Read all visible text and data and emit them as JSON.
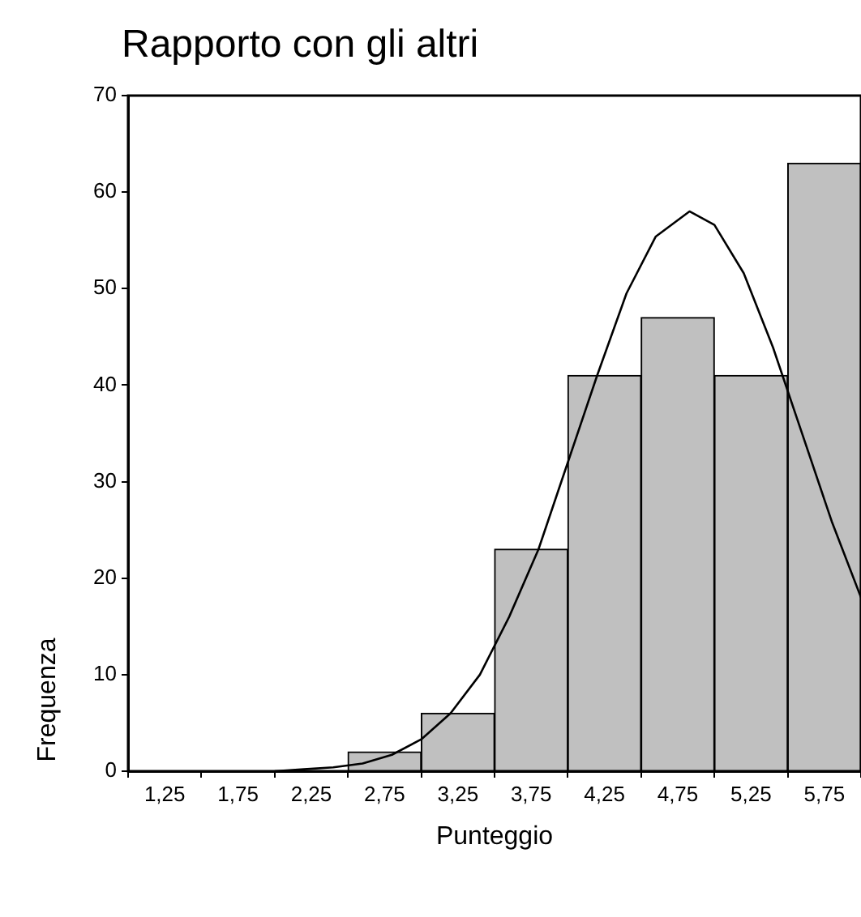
{
  "chart_data": {
    "type": "histogram",
    "title": "Rapporto con gli altri",
    "xlabel": "Punteggio",
    "ylabel": "Frequenza",
    "bins": [
      1.0,
      1.5,
      2.0,
      2.5,
      3.0,
      3.5,
      4.0,
      4.5,
      5.0,
      5.5,
      6.0
    ],
    "values": [
      0,
      0,
      0,
      2,
      6,
      23,
      41,
      47,
      41,
      63
    ],
    "color": "#c0c0c0",
    "series": [
      {
        "type": "line",
        "color": "#000000",
        "x": [
          2.0,
          2.2,
          2.4,
          2.6,
          2.8,
          3.0,
          3.2,
          3.4,
          3.6,
          3.8,
          4.0,
          4.2,
          4.4,
          4.6,
          4.83,
          5.0,
          5.2,
          5.4,
          5.6,
          5.8,
          6.0
        ],
        "values": [
          0,
          0.2,
          0.4,
          0.8,
          1.7,
          3.3,
          6,
          10,
          16,
          23,
          32,
          41,
          49.5,
          55.4,
          58,
          56.6,
          51.6,
          43.9,
          34.9,
          25.9,
          18
        ]
      }
    ],
    "xlim": [
      1.0,
      6.0
    ],
    "xticks": [
      {
        "value": 1.25,
        "label": "1,25"
      },
      {
        "value": 1.75,
        "label": "1,75"
      },
      {
        "value": 2.25,
        "label": "2,25"
      },
      {
        "value": 2.75,
        "label": "2,75"
      },
      {
        "value": 3.25,
        "label": "3,25"
      },
      {
        "value": 3.75,
        "label": "3,75"
      },
      {
        "value": 4.25,
        "label": "4,25"
      },
      {
        "value": 4.75,
        "label": "4,75"
      },
      {
        "value": 5.25,
        "label": "5,25"
      },
      {
        "value": 5.75,
        "label": "5,75"
      }
    ],
    "ylim": [
      0,
      70
    ],
    "yticks": [
      0,
      10,
      20,
      30,
      40,
      50,
      60,
      70
    ],
    "grid": false,
    "legend": false,
    "marker": "none",
    "line_style": "solid"
  }
}
